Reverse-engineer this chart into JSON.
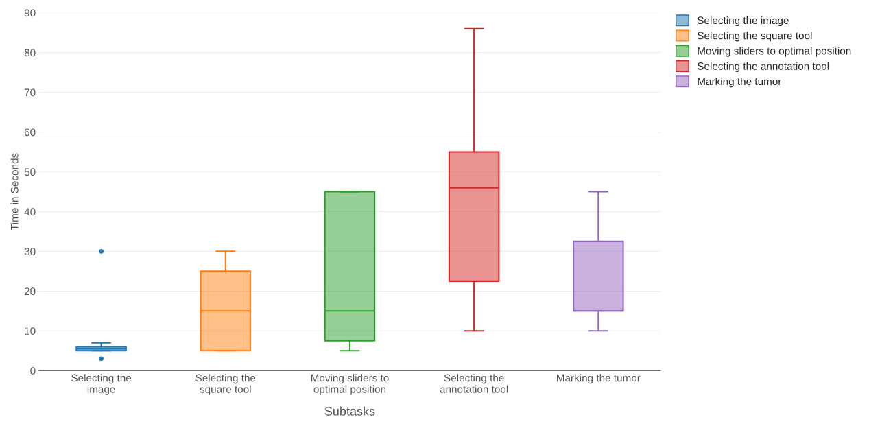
{
  "chart_data": {
    "type": "box",
    "xlabel": "Subtasks",
    "ylabel": "Time in Seconds",
    "categories": [
      "Selecting the\nimage",
      "Selecting the\nsquare tool",
      "Moving sliders to\noptimal position",
      "Selecting the\nannotation tool",
      "Marking the tumor"
    ],
    "series": [
      {
        "name": "Selecting the image",
        "color": "#1f77b4",
        "boxes": [
          {
            "low": 5,
            "q1": 5,
            "median": 5.5,
            "q3": 6,
            "high": 7,
            "outliers": [
              3,
              30
            ]
          },
          null,
          null,
          null,
          null
        ]
      },
      {
        "name": "Selecting the square tool",
        "color": "#ff7f0e",
        "boxes": [
          null,
          {
            "low": 5,
            "q1": 5,
            "median": 15,
            "q3": 25,
            "high": 30
          },
          null,
          null,
          null
        ]
      },
      {
        "name": "Moving sliders to optimal position",
        "color": "#2ca02c",
        "boxes": [
          null,
          null,
          {
            "low": 5,
            "q1": 7.5,
            "median": 15,
            "q3": 45,
            "high": 45
          },
          null,
          null
        ]
      },
      {
        "name": "Selecting the annotation tool",
        "color": "#d62728",
        "boxes": [
          null,
          null,
          null,
          {
            "low": 10,
            "q1": 22.5,
            "median": 46,
            "q3": 55,
            "high": 86
          },
          null
        ]
      },
      {
        "name": "Marking the tumor",
        "color": "#9467bd",
        "boxes": [
          null,
          null,
          null,
          null,
          {
            "low": 10,
            "q1": 15,
            "median": 15,
            "q3": 32.5,
            "high": 45
          }
        ]
      }
    ],
    "ylim": [
      0,
      90
    ],
    "yticks": [
      0,
      10,
      20,
      30,
      40,
      50,
      60,
      70,
      80,
      90
    ],
    "grid": "y",
    "legend": "top right"
  }
}
